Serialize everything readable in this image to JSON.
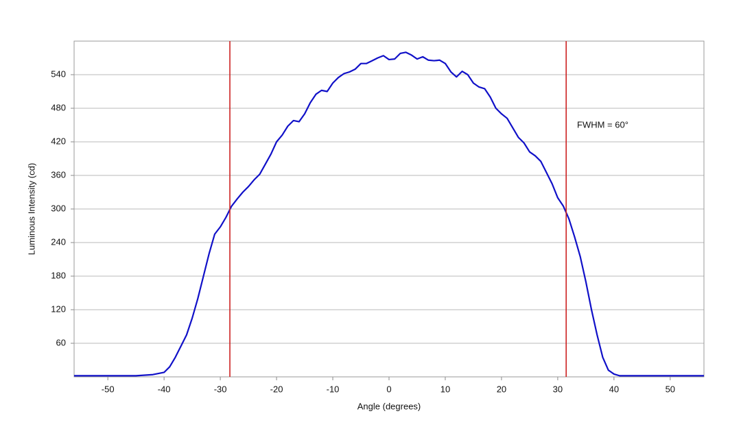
{
  "chart_data": {
    "type": "line",
    "xlabel": "Angle (degrees)",
    "ylabel": "Luminous Intensity (cd)",
    "annotation": "FWHM = 60°",
    "x": [
      -56,
      -45,
      -42,
      -40,
      -39,
      -38,
      -37,
      -36,
      -35,
      -34,
      -33,
      -32,
      -31,
      -30,
      -29,
      -28,
      -27,
      -26,
      -25,
      -24,
      -23,
      -22,
      -21,
      -20,
      -19,
      -18,
      -17,
      -16,
      -15,
      -14,
      -13,
      -12,
      -11,
      -10,
      -9,
      -8,
      -7,
      -6,
      -5,
      -4,
      -3,
      -2,
      -1,
      0,
      1,
      2,
      3,
      4,
      5,
      6,
      7,
      8,
      9,
      10,
      11,
      12,
      13,
      14,
      15,
      16,
      17,
      18,
      19,
      20,
      21,
      22,
      23,
      24,
      25,
      26,
      27,
      28,
      29,
      30,
      31,
      32,
      33,
      34,
      35,
      36,
      37,
      38,
      39,
      40,
      41,
      56
    ],
    "series": [
      {
        "name": "Luminous Intensity",
        "color": "#1010c8",
        "values": [
          2,
          2,
          4,
          8,
          18,
          35,
          55,
          75,
          105,
          140,
          180,
          220,
          255,
          268,
          285,
          305,
          318,
          330,
          340,
          352,
          362,
          380,
          398,
          420,
          432,
          448,
          458,
          456,
          470,
          490,
          505,
          512,
          510,
          525,
          535,
          542,
          545,
          550,
          560,
          560,
          565,
          570,
          574,
          567,
          568,
          578,
          580,
          575,
          568,
          572,
          566,
          565,
          566,
          560,
          545,
          536,
          546,
          540,
          525,
          518,
          515,
          500,
          480,
          470,
          462,
          445,
          428,
          418,
          402,
          395,
          385,
          365,
          345,
          320,
          305,
          282,
          250,
          215,
          170,
          120,
          75,
          35,
          12,
          5,
          2,
          2
        ]
      }
    ],
    "vlines": [
      -28.3,
      31.5
    ],
    "vline_color": "#cc2020",
    "xlim": [
      -56,
      56
    ],
    "xticks": [
      -50,
      -40,
      -30,
      -20,
      -10,
      0,
      10,
      20,
      30,
      40,
      50
    ],
    "ylim": [
      0,
      600
    ],
    "yticks": [
      60,
      120,
      180,
      240,
      300,
      360,
      420,
      480,
      540
    ],
    "grid": true
  }
}
